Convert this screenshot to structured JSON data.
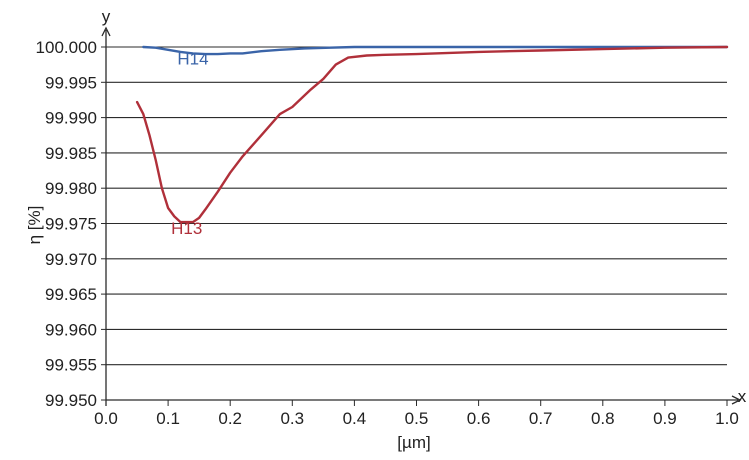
{
  "chart_data": {
    "type": "line",
    "xlabel": "[µm]",
    "ylabel": "η [%]",
    "x_axis_letter": "x",
    "y_axis_letter": "y",
    "xlim": [
      0.0,
      1.0
    ],
    "ylim": [
      99.95,
      100.0
    ],
    "x_ticks": [
      0.0,
      0.1,
      0.2,
      0.3,
      0.4,
      0.5,
      0.6,
      0.7,
      0.8,
      0.9,
      1.0
    ],
    "x_tick_labels": [
      "0.0",
      "0.1",
      "0.2",
      "0.3",
      "0.4",
      "0.5",
      "0.6",
      "0.7",
      "0.8",
      "0.9",
      "1.0"
    ],
    "y_ticks": [
      99.95,
      99.955,
      99.96,
      99.965,
      99.97,
      99.975,
      99.98,
      99.985,
      99.99,
      99.995,
      100.0
    ],
    "y_tick_labels": [
      "99.950",
      "99.955",
      "99.960",
      "99.965",
      "99.970",
      "99.975",
      "99.980",
      "99.985",
      "99.990",
      "99.995",
      "100.000"
    ],
    "grid": "horizontal",
    "series": [
      {
        "name": "H14",
        "color": "#3a64a8",
        "x": [
          0.06,
          0.08,
          0.1,
          0.12,
          0.14,
          0.16,
          0.18,
          0.2,
          0.22,
          0.25,
          0.28,
          0.32,
          0.36,
          0.4,
          0.5,
          0.6,
          0.66,
          0.7,
          0.8,
          0.9,
          1.0
        ],
        "y": [
          100.0,
          99.9999,
          99.9996,
          99.9993,
          99.9991,
          99.999,
          99.999,
          99.9991,
          99.9991,
          99.9994,
          99.9996,
          99.9998,
          99.9999,
          100.0,
          100.0,
          100.0,
          100.0,
          100.0,
          100.0,
          100.0,
          100.0
        ]
      },
      {
        "name": "H13",
        "color": "#b0303a",
        "x": [
          0.05,
          0.06,
          0.07,
          0.08,
          0.09,
          0.1,
          0.11,
          0.12,
          0.13,
          0.14,
          0.15,
          0.16,
          0.18,
          0.2,
          0.22,
          0.25,
          0.28,
          0.3,
          0.33,
          0.35,
          0.37,
          0.39,
          0.42,
          0.45,
          0.5,
          0.6,
          0.7,
          0.8,
          0.9,
          1.0
        ],
        "y": [
          99.9922,
          99.9905,
          99.9875,
          99.984,
          99.98,
          99.9772,
          99.976,
          99.9752,
          99.9752,
          99.9752,
          99.9758,
          99.977,
          99.9795,
          99.9822,
          99.9845,
          99.9875,
          99.9905,
          99.9915,
          99.994,
          99.9955,
          99.9975,
          99.9985,
          99.9988,
          99.9989,
          99.999,
          99.9993,
          99.9995,
          99.9997,
          99.9999,
          100.0
        ]
      }
    ],
    "annotations": [
      {
        "text": "H14",
        "x": 0.14,
        "y": 99.9975,
        "color": "#3a64a8"
      },
      {
        "text": "H13",
        "x": 0.13,
        "y": 99.9735,
        "color": "#b0303a"
      }
    ]
  }
}
